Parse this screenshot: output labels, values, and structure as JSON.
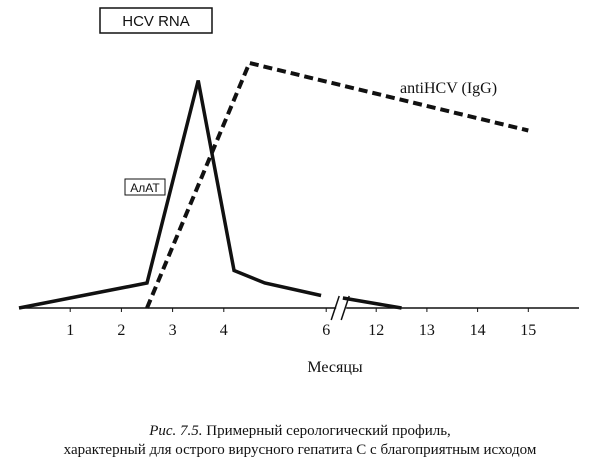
{
  "chart_data": {
    "type": "line",
    "annotation": "HCV RNA",
    "x_label": "Месяцы",
    "caption": {
      "figure": "Рис. 7.5.",
      "lines": [
        "Примерный серологический профиль,",
        "характерный для острого вирусного гепатита С с благоприятным исходом"
      ]
    },
    "xlim": [
      0,
      16
    ],
    "xticks": [
      1,
      2,
      3,
      4,
      6,
      12,
      13,
      14,
      15
    ],
    "axis_break": [
      6,
      12
    ],
    "ylim": [
      0,
      100
    ],
    "series": [
      {
        "name": "АлАТ",
        "color": "#111111",
        "dashed": false,
        "x": [
          0,
          2.5,
          3.5,
          4.2,
          4.8,
          5.9,
          7,
          8,
          12.5
        ],
        "values": [
          0,
          10,
          91,
          15,
          10,
          5,
          null,
          4,
          0
        ]
      },
      {
        "name": "antiHCV (IgG)",
        "color": "#111111",
        "dashed": true,
        "x": [
          2.5,
          4.5,
          15
        ],
        "values": [
          0,
          98,
          71
        ]
      }
    ]
  }
}
